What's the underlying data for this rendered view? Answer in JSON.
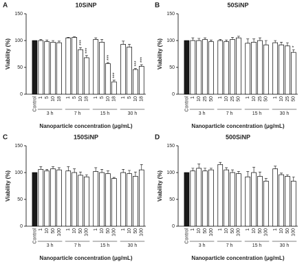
{
  "chart_data": [
    {
      "type": "bar",
      "panel": "A",
      "title": "10SiNP",
      "ylabel": "Viability (%)",
      "xlabel": "Nanoparticle concentration (μg/mL)",
      "categories": [
        "Control",
        "1",
        "5",
        "10",
        "18",
        "1",
        "5",
        "10",
        "18",
        "1",
        "5",
        "10",
        "18",
        "1",
        "5",
        "10",
        "18"
      ],
      "groups": [
        "3 h",
        "7 h",
        "15 h",
        "30 h"
      ],
      "values": [
        100,
        100,
        98,
        97,
        96,
        105,
        106,
        83,
        68,
        102,
        97,
        57,
        23,
        93,
        88,
        46,
        52
      ],
      "errors": [
        null,
        2,
        3,
        3,
        3,
        1,
        1,
        4,
        4,
        3,
        5,
        2,
        3,
        6,
        5,
        2,
        3
      ],
      "significance": [
        null,
        null,
        null,
        null,
        null,
        null,
        null,
        "***",
        "***",
        null,
        null,
        "***",
        "***",
        null,
        null,
        "***",
        "***"
      ],
      "ylim": [
        0,
        150
      ],
      "yticks": [
        0,
        50,
        100,
        150
      ],
      "color": "#ffffff",
      "control_color": "#1a1a1a",
      "edge_color": "#000000"
    },
    {
      "type": "bar",
      "panel": "B",
      "title": "50SiNP",
      "ylabel": "Viability (%)",
      "xlabel": "Nanoparticle concentration (μg/mL)",
      "categories": [
        "Control",
        "1",
        "10",
        "25",
        "50",
        "1",
        "10",
        "25",
        "50",
        "1",
        "10",
        "25",
        "50",
        "1",
        "10",
        "25",
        "50"
      ],
      "groups": [
        "3 h",
        "7 h",
        "15 h",
        "30 h"
      ],
      "values": [
        100,
        100,
        100,
        102,
        98,
        100,
        98,
        102,
        105,
        95,
        97,
        100,
        92,
        96,
        92,
        90,
        78
      ],
      "errors": [
        null,
        5,
        4,
        3,
        3,
        2,
        3,
        4,
        3,
        8,
        6,
        5,
        8,
        4,
        5,
        6,
        5
      ],
      "significance": [
        null,
        null,
        null,
        null,
        null,
        null,
        null,
        null,
        null,
        null,
        null,
        null,
        null,
        null,
        null,
        null,
        "*"
      ],
      "ylim": [
        0,
        150
      ],
      "yticks": [
        0,
        50,
        100,
        150
      ],
      "color": "#ffffff",
      "control_color": "#1a1a1a",
      "edge_color": "#000000"
    },
    {
      "type": "bar",
      "panel": "C",
      "title": "150SiNP",
      "ylabel": "Viability (%)",
      "xlabel": "Nanoparticle concentration (μg/mL)",
      "categories": [
        "Control",
        "1",
        "10",
        "50",
        "100",
        "1",
        "10",
        "50",
        "100",
        "1",
        "10",
        "50",
        "100",
        "1",
        "10",
        "50",
        "100"
      ],
      "groups": [
        "3 h",
        "7 h",
        "15 h",
        "30 h"
      ],
      "values": [
        100,
        106,
        103,
        107,
        105,
        103,
        100,
        95,
        92,
        102,
        100,
        98,
        89,
        100,
        98,
        93,
        105
      ],
      "errors": [
        null,
        5,
        3,
        4,
        4,
        8,
        7,
        6,
        4,
        7,
        6,
        5,
        2,
        6,
        6,
        8,
        10
      ],
      "significance": [
        null,
        null,
        null,
        null,
        null,
        null,
        null,
        null,
        null,
        null,
        null,
        null,
        null,
        null,
        null,
        null,
        null
      ],
      "ylim": [
        0,
        150
      ],
      "yticks": [
        0,
        50,
        100,
        150
      ],
      "color": "#ffffff",
      "control_color": "#1a1a1a",
      "edge_color": "#000000"
    },
    {
      "type": "bar",
      "panel": "D",
      "title": "500SiNP",
      "ylabel": "Viability (%)",
      "xlabel": "Nanoparticle concentration (μg/mL)",
      "categories": [
        "Control",
        "1",
        "10",
        "50",
        "100",
        "1",
        "10",
        "50",
        "100",
        "1",
        "10",
        "50",
        "100",
        "1",
        "10",
        "50",
        "100"
      ],
      "groups": [
        "3 h",
        "7 h",
        "15 h",
        "30 h"
      ],
      "values": [
        100,
        103,
        108,
        103,
        105,
        115,
        105,
        100,
        98,
        92,
        100,
        93,
        84,
        107,
        96,
        93,
        84
      ],
      "errors": [
        null,
        5,
        8,
        5,
        3,
        4,
        4,
        5,
        4,
        10,
        10,
        8,
        5,
        5,
        3,
        3,
        8
      ],
      "significance": [
        null,
        null,
        null,
        null,
        null,
        null,
        null,
        null,
        null,
        null,
        null,
        null,
        null,
        null,
        null,
        null,
        null
      ],
      "ylim": [
        0,
        150
      ],
      "yticks": [
        0,
        50,
        100,
        150
      ],
      "color": "#ffffff",
      "control_color": "#1a1a1a",
      "edge_color": "#000000"
    }
  ]
}
